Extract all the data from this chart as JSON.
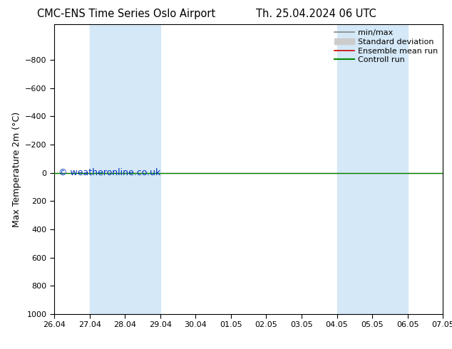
{
  "title_left": "CMC-ENS Time Series Oslo Airport",
  "title_right": "Th. 25.04.2024 06 UTC",
  "ylabel": "Max Temperature 2m (°C)",
  "watermark": "© weatheronline.co.uk",
  "ylim_bottom": 1000,
  "ylim_top": -1050,
  "yticks": [
    -800,
    -600,
    -400,
    -200,
    0,
    200,
    400,
    600,
    800,
    1000
  ],
  "x_labels": [
    "26.04",
    "27.04",
    "28.04",
    "29.04",
    "30.04",
    "01.05",
    "02.05",
    "03.05",
    "04.05",
    "05.05",
    "06.05",
    "07.05"
  ],
  "x_values": [
    0,
    1,
    2,
    3,
    4,
    5,
    6,
    7,
    8,
    9,
    10,
    11
  ],
  "weekend_bands": [
    {
      "xmin": 1,
      "xmax": 3,
      "color": "#d4e8f7"
    },
    {
      "xmin": 8,
      "xmax": 10,
      "color": "#d4e8f7"
    }
  ],
  "control_run_y": 0,
  "ensemble_mean_y": 0,
  "control_run_color": "#008800",
  "ensemble_mean_color": "#cc0000",
  "minmax_color": "#888888",
  "stddev_color": "#cccccc",
  "legend_labels": [
    "min/max",
    "Standard deviation",
    "Ensemble mean run",
    "Controll run"
  ],
  "background_color": "#ffffff",
  "plot_background": "#ffffff",
  "title_fontsize": 10.5,
  "axis_fontsize": 9,
  "tick_fontsize": 8,
  "watermark_color": "#0033bb",
  "watermark_fontsize": 9
}
